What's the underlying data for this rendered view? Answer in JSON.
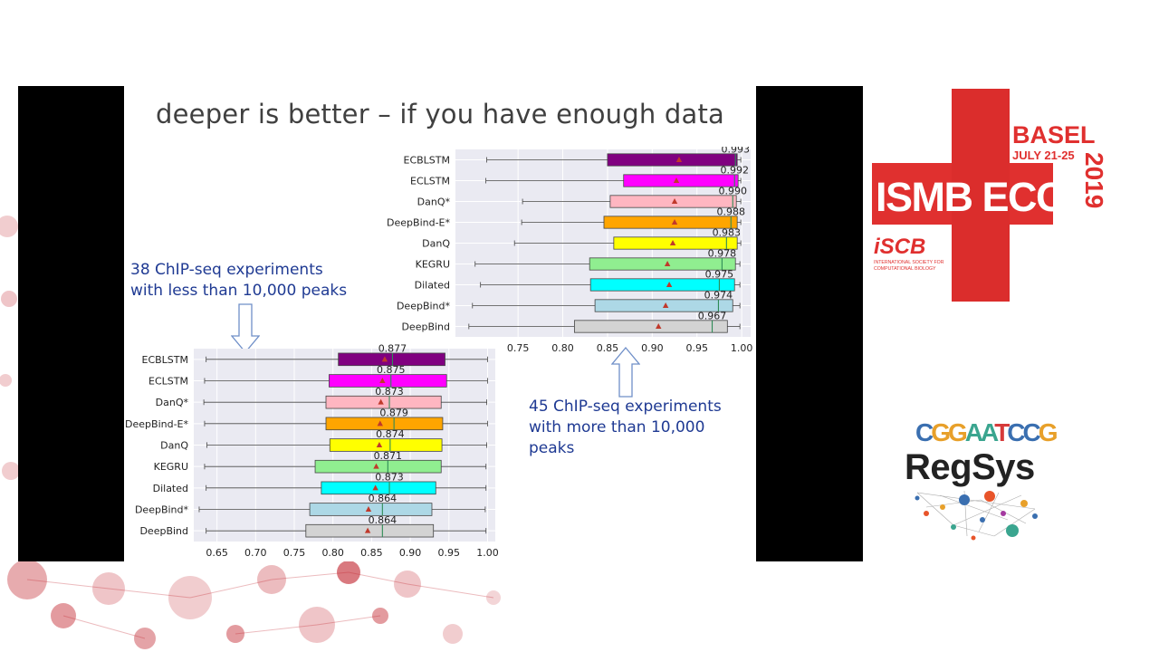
{
  "slide": {
    "title": "deeper is better – if you have enough data",
    "callout_small": [
      "38 ChIP-seq experiments",
      "with less than 10,000 peaks"
    ],
    "callout_large": [
      "45 ChIP-seq experiments",
      "with more than 10,000",
      "peaks"
    ]
  },
  "logos": {
    "ismb": {
      "city": "BASEL",
      "dates": "JULY 21-25",
      "name": "ISMB ECCB",
      "year": "2019",
      "society_short": "iSCB",
      "society_full_1": "INTERNATIONAL SOCIETY FOR",
      "society_full_2": "COMPUTATIONAL BIOLOGY",
      "color": "#e0302f"
    },
    "regsys": {
      "name": "RegSys",
      "motif": "CGGAATCCG"
    }
  },
  "chart_data": [
    {
      "type": "box",
      "title": "",
      "xlabel": "",
      "ylabel": "",
      "xlim": [
        0.62,
        1.01
      ],
      "xticks": [
        "0.65",
        "0.70",
        "0.75",
        "0.80",
        "0.85",
        "0.90",
        "0.95",
        "1.00"
      ],
      "grid": true,
      "boxes": [
        {
          "name": "ECBLSTM",
          "whisker_low": 0.636,
          "q1": 0.807,
          "median": 0.877,
          "q3": 0.945,
          "whisker_high": 1.0,
          "mean": 0.867,
          "label": "0.877",
          "color": "#800080"
        },
        {
          "name": "ECLSTM",
          "whisker_low": 0.634,
          "q1": 0.795,
          "median": 0.875,
          "q3": 0.947,
          "whisker_high": 1.0,
          "mean": 0.864,
          "label": "0.875",
          "color": "#ff00ff"
        },
        {
          "name": "DanQ*",
          "whisker_low": 0.633,
          "q1": 0.791,
          "median": 0.873,
          "q3": 0.94,
          "whisker_high": 0.999,
          "mean": 0.862,
          "label": "0.873",
          "color": "#ffb6c1"
        },
        {
          "name": "DeepBind-E*",
          "whisker_low": 0.634,
          "q1": 0.791,
          "median": 0.879,
          "q3": 0.942,
          "whisker_high": 1.0,
          "mean": 0.861,
          "label": "0.879",
          "color": "#ffa500"
        },
        {
          "name": "DanQ",
          "whisker_low": 0.637,
          "q1": 0.796,
          "median": 0.874,
          "q3": 0.941,
          "whisker_high": 0.999,
          "mean": 0.86,
          "label": "0.874",
          "color": "#ffff00"
        },
        {
          "name": "KEGRU",
          "whisker_low": 0.634,
          "q1": 0.777,
          "median": 0.871,
          "q3": 0.94,
          "whisker_high": 0.998,
          "mean": 0.856,
          "label": "0.871",
          "color": "#90ee90"
        },
        {
          "name": "Dilated",
          "whisker_low": 0.636,
          "q1": 0.785,
          "median": 0.873,
          "q3": 0.933,
          "whisker_high": 0.998,
          "mean": 0.855,
          "label": "0.873",
          "color": "#00ffff"
        },
        {
          "name": "DeepBind*",
          "whisker_low": 0.627,
          "q1": 0.77,
          "median": 0.864,
          "q3": 0.928,
          "whisker_high": 0.997,
          "mean": 0.846,
          "label": "0.864",
          "color": "#add8e6"
        },
        {
          "name": "DeepBind",
          "whisker_low": 0.636,
          "q1": 0.765,
          "median": 0.864,
          "q3": 0.93,
          "whisker_high": 0.998,
          "mean": 0.845,
          "label": "0.864",
          "color": "#d3d3d3"
        }
      ]
    },
    {
      "type": "box",
      "title": "",
      "xlabel": "",
      "ylabel": "",
      "xlim": [
        0.68,
        1.01
      ],
      "xticks": [
        "0.75",
        "0.80",
        "0.85",
        "0.90",
        "0.95",
        "1.00"
      ],
      "grid": true,
      "boxes": [
        {
          "name": "ECBLSTM",
          "whisker_low": 0.715,
          "q1": 0.85,
          "median": 0.993,
          "q3": 0.995,
          "whisker_high": 0.999,
          "mean": 0.93,
          "label": "0.993",
          "color": "#800080"
        },
        {
          "name": "ECLSTM",
          "whisker_low": 0.714,
          "q1": 0.868,
          "median": 0.992,
          "q3": 0.996,
          "whisker_high": 0.999,
          "mean": 0.927,
          "label": "0.992",
          "color": "#ff00ff"
        },
        {
          "name": "DanQ*",
          "whisker_low": 0.755,
          "q1": 0.853,
          "median": 0.99,
          "q3": 0.994,
          "whisker_high": 0.999,
          "mean": 0.925,
          "label": "0.990",
          "color": "#ffb6c1"
        },
        {
          "name": "DeepBind-E*",
          "whisker_low": 0.754,
          "q1": 0.846,
          "median": 0.988,
          "q3": 0.995,
          "whisker_high": 0.999,
          "mean": 0.925,
          "label": "0.988",
          "color": "#ffa500"
        },
        {
          "name": "DanQ",
          "whisker_low": 0.746,
          "q1": 0.857,
          "median": 0.983,
          "q3": 0.995,
          "whisker_high": 0.999,
          "mean": 0.923,
          "label": "0.983",
          "color": "#ffff00"
        },
        {
          "name": "KEGRU",
          "whisker_low": 0.702,
          "q1": 0.83,
          "median": 0.978,
          "q3": 0.993,
          "whisker_high": 0.998,
          "mean": 0.917,
          "label": "0.978",
          "color": "#90ee90"
        },
        {
          "name": "Dilated",
          "whisker_low": 0.708,
          "q1": 0.831,
          "median": 0.975,
          "q3": 0.992,
          "whisker_high": 0.998,
          "mean": 0.919,
          "label": "0.975",
          "color": "#00ffff"
        },
        {
          "name": "DeepBind*",
          "whisker_low": 0.699,
          "q1": 0.836,
          "median": 0.974,
          "q3": 0.99,
          "whisker_high": 0.998,
          "mean": 0.915,
          "label": "0.974",
          "color": "#add8e6"
        },
        {
          "name": "DeepBind",
          "whisker_low": 0.695,
          "q1": 0.813,
          "median": 0.967,
          "q3": 0.984,
          "whisker_high": 0.998,
          "mean": 0.907,
          "label": "0.967",
          "color": "#d3d3d3"
        }
      ]
    }
  ]
}
